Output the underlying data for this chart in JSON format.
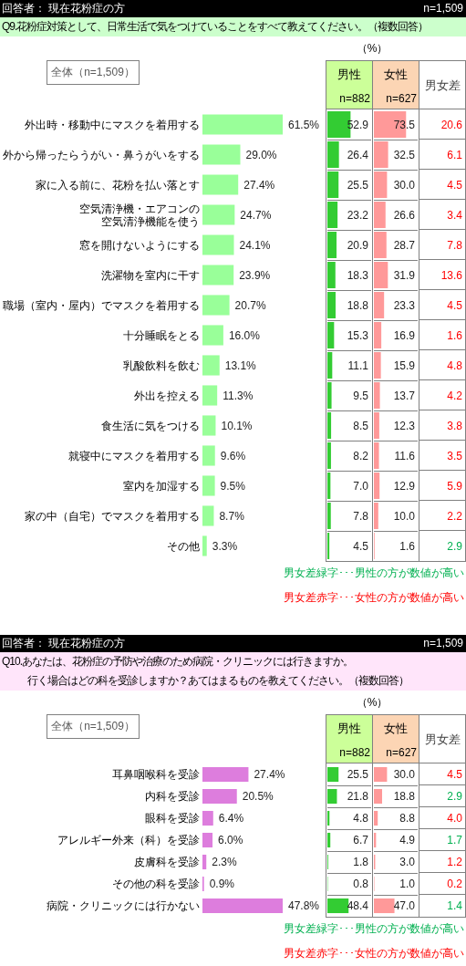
{
  "chart_data": [
    {
      "type": "bar",
      "orientation": "horizontal",
      "title": "回答者： 現在花粉症の方",
      "subtitle": "Q9.花粉症対策として、日常生活で気をつけていることをすべて教えてください。（複数回答）",
      "annotations": [
        "n=1,509",
        "全体（n=1,509）"
      ],
      "categories": [
        "外出時・移動中にマスクを着用する",
        "外から帰ったらうがい・鼻うがいをする",
        "家に入る前に、花粉を払い落とす",
        "空気清浄機・エアコンの空気清浄機能を使う",
        "窓を開けないようにする",
        "洗濯物を室内に干す",
        "職場（室内・屋内）でマスクを着用する",
        "十分睡眠をとる",
        "乳酸飲料を飲む",
        "外出を控える",
        "食生活に気をつける",
        "就寝中にマスクを着用する",
        "室内を加湿する",
        "家の中（自宅）でマスクを着用する",
        "その他"
      ],
      "values": [
        61.5,
        29.0,
        27.4,
        24.7,
        24.1,
        23.9,
        20.7,
        16.0,
        13.1,
        11.3,
        10.1,
        9.6,
        9.5,
        8.7,
        3.3
      ],
      "value_labels": [
        "61.5%",
        "29.0%",
        "27.4%",
        "24.7%",
        "24.1%",
        "23.9%",
        "20.7%",
        "16.0%",
        "13.1%",
        "11.3%",
        "10.1%",
        "9.6%",
        "9.5%",
        "8.7%",
        "3.3%"
      ],
      "color": "#99ff99",
      "tick_labels": "y"
    },
    {
      "type": "bar",
      "orientation": "horizontal",
      "title": "男性",
      "subtitle": "n=882",
      "annotations": [
        "（%）"
      ],
      "categories": [
        null,
        null,
        null,
        null,
        null,
        null,
        null,
        null,
        null,
        null,
        null,
        null,
        null,
        null,
        null
      ],
      "values": [
        52.9,
        26.4,
        25.5,
        23.2,
        20.9,
        18.3,
        18.8,
        15.3,
        11.1,
        9.5,
        8.5,
        8.2,
        7.0,
        7.8,
        4.5
      ],
      "value_labels": [
        "52.9",
        "26.4",
        "25.5",
        "23.2",
        "20.9",
        "18.3",
        "18.8",
        "15.3",
        "11.1",
        "9.5",
        "8.5",
        "8.2",
        "7.0",
        "7.8",
        "4.5"
      ],
      "color": "#33cc33",
      "xlim": [
        0,
        100
      ],
      "tick_labels": false,
      "grid": "y"
    },
    {
      "type": "bar",
      "orientation": "horizontal",
      "title": "女性",
      "subtitle": "n=627",
      "categories": [
        null,
        null,
        null,
        null,
        null,
        null,
        null,
        null,
        null,
        null,
        null,
        null,
        null,
        null,
        null
      ],
      "values": [
        73.5,
        32.5,
        30.0,
        26.6,
        28.7,
        31.9,
        23.3,
        16.9,
        15.9,
        13.7,
        12.3,
        11.6,
        12.9,
        10.0,
        1.6
      ],
      "value_labels": [
        "73.5",
        "32.5",
        "30.0",
        "26.6",
        "28.7",
        "31.9",
        "23.3",
        "16.9",
        "15.9",
        "13.7",
        "12.3",
        "11.6",
        "12.9",
        "10.0",
        "1.6"
      ],
      "color": "#ff9999",
      "xlim": [
        0,
        100
      ],
      "tick_labels": false,
      "grid": "y"
    },
    {
      "type": "other",
      "title": "男女差",
      "values": [
        20.6,
        6.1,
        4.5,
        3.4,
        7.8,
        13.6,
        4.5,
        1.6,
        4.8,
        4.2,
        3.8,
        3.5,
        5.9,
        2.2,
        2.9
      ],
      "value_labels": [
        "20.6",
        "6.1",
        "4.5",
        "3.4",
        "7.8",
        "13.6",
        "4.5",
        "1.6",
        "4.8",
        "4.2",
        "3.8",
        "3.5",
        "5.9",
        "2.2",
        "2.9"
      ],
      "colors": [
        "#ff0000",
        "#ff0000",
        "#ff0000",
        "#ff0000",
        "#ff0000",
        "#ff0000",
        "#ff0000",
        "#ff0000",
        "#ff0000",
        "#ff0000",
        "#ff0000",
        "#ff0000",
        "#ff0000",
        "#ff0000",
        "#00b050"
      ],
      "annotations": [
        "男女差緑字･･･男性の方が数値が高い",
        "男女差赤字･･･女性の方が数値が高い"
      ]
    },
    {
      "type": "bar",
      "orientation": "horizontal",
      "title": "回答者： 現在花粉症の方",
      "subtitle": "Q10.あなたは、花粉症の予防や治療のため病院・クリニックには行きますか。行く場合はどの科を受診しますか？あてはまるものを教えてください。（複数回答）",
      "annotations": [
        "n=1,509",
        "全体（n=1,509）"
      ],
      "categories": [
        "耳鼻咽喉科を受診",
        "内科を受診",
        "眼科を受診",
        "アレルギー外来（科）を受診",
        "皮膚科を受診",
        "その他の科を受診",
        "病院・クリニックには行かない"
      ],
      "values": [
        27.4,
        20.5,
        6.4,
        6.0,
        2.3,
        0.9,
        47.8
      ],
      "value_labels": [
        "27.4%",
        "20.5%",
        "6.4%",
        "6.0%",
        "2.3%",
        "0.9%",
        "47.8%"
      ],
      "color": "#dd7ddd",
      "tick_labels": "y"
    },
    {
      "type": "bar",
      "orientation": "horizontal",
      "title": "男性",
      "subtitle": "n=882",
      "annotations": [
        "（%）"
      ],
      "categories": [
        null,
        null,
        null,
        null,
        null,
        null,
        null
      ],
      "values": [
        25.5,
        21.8,
        4.8,
        6.7,
        1.8,
        0.8,
        48.4
      ],
      "value_labels": [
        "25.5",
        "21.8",
        "4.8",
        "6.7",
        "1.8",
        "0.8",
        "48.4"
      ],
      "color": "#33cc33",
      "xlim": [
        0,
        100
      ],
      "tick_labels": false,
      "grid": "y"
    },
    {
      "type": "bar",
      "orientation": "horizontal",
      "title": "女性",
      "subtitle": "n=627",
      "categories": [
        null,
        null,
        null,
        null,
        null,
        null,
        null
      ],
      "values": [
        30.0,
        18.8,
        8.8,
        4.9,
        3.0,
        1.0,
        47.0
      ],
      "value_labels": [
        "30.0",
        "18.8",
        "8.8",
        "4.9",
        "3.0",
        "1.0",
        "47.0"
      ],
      "color": "#ff9999",
      "xlim": [
        0,
        100
      ],
      "tick_labels": false,
      "grid": "y"
    },
    {
      "type": "other",
      "title": "男女差",
      "values": [
        4.5,
        2.9,
        4.0,
        1.7,
        1.2,
        0.2,
        1.4
      ],
      "value_labels": [
        "4.5",
        "2.9",
        "4.0",
        "1.7",
        "1.2",
        "0.2",
        "1.4"
      ],
      "colors": [
        "#ff0000",
        "#00b050",
        "#ff0000",
        "#00b050",
        "#ff0000",
        "#ff0000",
        "#00b050"
      ],
      "annotations": [
        "男女差緑字･･･男性の方が数値が高い",
        "男女差赤字･･･女性の方が数値が高い"
      ]
    }
  ]
}
